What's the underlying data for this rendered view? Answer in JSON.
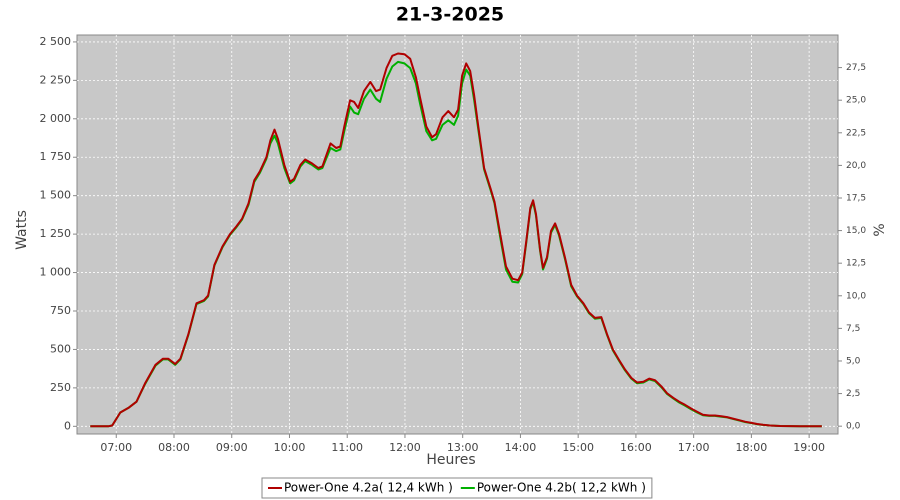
{
  "chart_data": {
    "type": "line",
    "title": "21-3-2025",
    "x_label": "Heures",
    "y_label": "Watts",
    "y2_label": "%",
    "x": [
      6.55,
      6.86,
      6.93,
      7.07,
      7.21,
      7.35,
      7.5,
      7.68,
      7.81,
      7.9,
      8.02,
      8.11,
      8.25,
      8.39,
      8.52,
      8.59,
      8.7,
      8.84,
      8.97,
      9.08,
      9.18,
      9.29,
      9.39,
      9.49,
      9.6,
      9.67,
      9.74,
      9.8,
      9.91,
      10.01,
      10.08,
      10.19,
      10.27,
      10.39,
      10.5,
      10.57,
      10.71,
      10.81,
      10.88,
      10.95,
      11.05,
      11.12,
      11.19,
      11.29,
      11.4,
      11.5,
      11.57,
      11.68,
      11.78,
      11.88,
      11.99,
      12.09,
      12.19,
      12.26,
      12.37,
      12.47,
      12.54,
      12.65,
      12.75,
      12.85,
      12.92,
      12.99,
      13.06,
      13.13,
      13.2,
      13.27,
      13.37,
      13.48,
      13.55,
      13.65,
      13.75,
      13.86,
      13.96,
      14.03,
      14.1,
      14.17,
      14.22,
      14.27,
      14.34,
      14.39,
      14.46,
      14.53,
      14.6,
      14.67,
      14.77,
      14.88,
      14.98,
      15.09,
      15.19,
      15.29,
      15.4,
      15.5,
      15.6,
      15.71,
      15.81,
      15.92,
      16.02,
      16.13,
      16.23,
      16.33,
      16.44,
      16.54,
      16.65,
      16.75,
      16.85,
      16.96,
      17.06,
      17.16,
      17.27,
      17.37,
      17.48,
      17.58,
      17.68,
      17.79,
      17.89,
      18.0,
      18.1,
      18.2,
      18.32,
      18.5,
      18.84,
      19.22
    ],
    "series": [
      {
        "name": "Power-One 4.2a( 12,4 kWh )",
        "color": "#b00000",
        "values": [
          0,
          0,
          5,
          90,
          120,
          160,
          280,
          400,
          440,
          440,
          405,
          440,
          600,
          800,
          820,
          850,
          1050,
          1170,
          1250,
          1300,
          1350,
          1450,
          1600,
          1660,
          1750,
          1860,
          1930,
          1870,
          1700,
          1590,
          1610,
          1700,
          1735,
          1710,
          1680,
          1690,
          1840,
          1810,
          1820,
          1950,
          2120,
          2110,
          2070,
          2180,
          2240,
          2180,
          2190,
          2330,
          2410,
          2425,
          2420,
          2390,
          2270,
          2140,
          1950,
          1880,
          1900,
          2010,
          2050,
          2010,
          2060,
          2280,
          2360,
          2310,
          2150,
          1950,
          1680,
          1550,
          1460,
          1250,
          1040,
          960,
          950,
          1000,
          1200,
          1420,
          1470,
          1380,
          1150,
          1030,
          1100,
          1270,
          1320,
          1250,
          1100,
          920,
          850,
          800,
          740,
          705,
          710,
          600,
          500,
          430,
          370,
          315,
          285,
          290,
          310,
          300,
          260,
          215,
          185,
          160,
          140,
          115,
          95,
          75,
          70,
          70,
          65,
          60,
          50,
          40,
          30,
          22,
          15,
          10,
          5,
          2,
          0,
          0
        ]
      },
      {
        "name": "Power-One 4.2b( 12,2 kWh )",
        "color": "#00b000",
        "values": [
          0,
          0,
          5,
          90,
          120,
          160,
          275,
          395,
          435,
          435,
          400,
          435,
          595,
          795,
          815,
          845,
          1045,
          1165,
          1245,
          1295,
          1345,
          1440,
          1590,
          1650,
          1740,
          1840,
          1890,
          1840,
          1680,
          1580,
          1600,
          1690,
          1725,
          1700,
          1670,
          1680,
          1810,
          1790,
          1800,
          1920,
          2080,
          2040,
          2030,
          2130,
          2190,
          2130,
          2110,
          2260,
          2340,
          2370,
          2360,
          2330,
          2230,
          2100,
          1920,
          1860,
          1870,
          1960,
          1990,
          1960,
          2020,
          2230,
          2320,
          2280,
          2120,
          1930,
          1670,
          1540,
          1450,
          1230,
          1020,
          940,
          935,
          990,
          1190,
          1410,
          1460,
          1370,
          1140,
          1020,
          1090,
          1260,
          1310,
          1240,
          1090,
          910,
          845,
          795,
          735,
          700,
          705,
          595,
          495,
          425,
          365,
          310,
          280,
          285,
          305,
          295,
          255,
          210,
          180,
          155,
          135,
          110,
          90,
          72,
          68,
          68,
          62,
          58,
          48,
          38,
          28,
          20,
          14,
          9,
          5,
          2,
          0,
          0
        ]
      }
    ],
    "xlim": [
      6.32,
      19.5
    ],
    "xticks": [
      {
        "value": 7,
        "label": "07:00"
      },
      {
        "value": 8,
        "label": "08:00"
      },
      {
        "value": 9,
        "label": "09:00"
      },
      {
        "value": 10,
        "label": "10:00"
      },
      {
        "value": 11,
        "label": "11:00"
      },
      {
        "value": 12,
        "label": "12:00"
      },
      {
        "value": 13,
        "label": "13:00"
      },
      {
        "value": 14,
        "label": "14:00"
      },
      {
        "value": 15,
        "label": "15:00"
      },
      {
        "value": 16,
        "label": "16:00"
      },
      {
        "value": 17,
        "label": "17:00"
      },
      {
        "value": 18,
        "label": "18:00"
      },
      {
        "value": 19,
        "label": "19:00"
      }
    ],
    "ylim": [
      -50,
      2545
    ],
    "yticks": [
      0,
      250,
      500,
      750,
      {
        "value": 1000,
        "label": "1 000"
      },
      {
        "value": 1250,
        "label": "1 250"
      },
      {
        "value": 1500,
        "label": "1 500"
      },
      {
        "value": 1750,
        "label": "1 750"
      },
      {
        "value": 2000,
        "label": "2 000"
      },
      {
        "value": 2250,
        "label": "2 250"
      },
      {
        "value": 2500,
        "label": "2 500"
      }
    ],
    "y2lim": [
      -0.6,
      30.0
    ],
    "y2ticks": [
      {
        "value": 0,
        "label": "0,0"
      },
      {
        "value": 2.5,
        "label": "2,5"
      },
      {
        "value": 5,
        "label": "5,0"
      },
      {
        "value": 7.5,
        "label": "7,5"
      },
      {
        "value": 10,
        "label": "10,0"
      },
      {
        "value": 12.5,
        "label": "12,5"
      },
      {
        "value": 15,
        "label": "15,0"
      },
      {
        "value": 17.5,
        "label": "17,5"
      },
      {
        "value": 20,
        "label": "20,0"
      },
      {
        "value": 22.5,
        "label": "22,5"
      },
      {
        "value": 25,
        "label": "25,0"
      },
      {
        "value": 27.5,
        "label": "27,5"
      }
    ],
    "grid": true,
    "legend": "bottom",
    "plot_background": "#c8c8c8"
  }
}
